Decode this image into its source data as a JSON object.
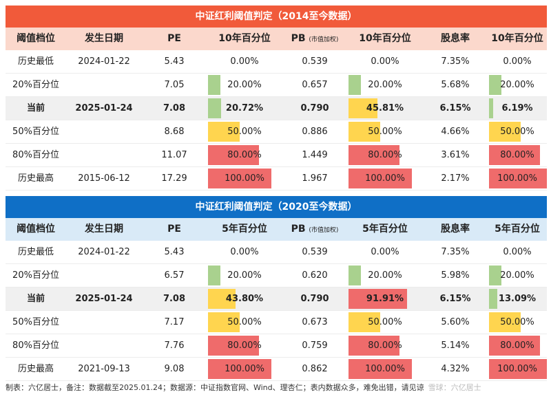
{
  "table1": {
    "title": "中证红利阈值判定（2014至今数据）",
    "headers": [
      "阈值档位",
      "发生日期",
      "PE",
      "10年百分位",
      "PB",
      "10年百分位",
      "股息率",
      "10年百分位"
    ],
    "pb_note": "(市值加权)",
    "rows": [
      {
        "level": "历史最低",
        "date": "2024-01-22",
        "pe": "5.43",
        "pe_pct": "0.00%",
        "pe_pct_val": 0.0,
        "pb": "0.539",
        "pb_pct": "0.00%",
        "pb_pct_val": 0.0,
        "yield": "7.35%",
        "yield_pct": "0.00%",
        "yield_pct_val": 0.0
      },
      {
        "level": "20%百分位",
        "date": "",
        "pe": "7.05",
        "pe_pct": "20.00%",
        "pe_pct_val": 0.2,
        "pb": "0.657",
        "pb_pct": "20.00%",
        "pb_pct_val": 0.2,
        "yield": "5.68%",
        "yield_pct": "20.00%",
        "yield_pct_val": 0.2
      },
      {
        "level": "当前",
        "date": "2025-01-24",
        "pe": "7.08",
        "pe_pct": "20.72%",
        "pe_pct_val": 0.2072,
        "pb": "0.790",
        "pb_pct": "45.81%",
        "pb_pct_val": 0.4581,
        "yield": "6.15%",
        "yield_pct": "6.19%",
        "yield_pct_val": 0.0619
      },
      {
        "level": "50%百分位",
        "date": "",
        "pe": "8.68",
        "pe_pct": "50.00%",
        "pe_pct_val": 0.5,
        "pb": "0.886",
        "pb_pct": "50.00%",
        "pb_pct_val": 0.5,
        "yield": "4.66%",
        "yield_pct": "50.00%",
        "yield_pct_val": 0.5
      },
      {
        "level": "80%百分位",
        "date": "",
        "pe": "11.07",
        "pe_pct": "80.00%",
        "pe_pct_val": 0.8,
        "pb": "1.449",
        "pb_pct": "80.00%",
        "pb_pct_val": 0.8,
        "yield": "3.61%",
        "yield_pct": "80.00%",
        "yield_pct_val": 0.8
      },
      {
        "level": "历史最高",
        "date": "2015-06-12",
        "pe": "17.29",
        "pe_pct": "100.00%",
        "pe_pct_val": 1.0,
        "pb": "1.967",
        "pb_pct": "100.00%",
        "pb_pct_val": 1.0,
        "yield": "2.17%",
        "yield_pct": "100.00%",
        "yield_pct_val": 1.0
      }
    ]
  },
  "table2": {
    "title": "中证红利阈值判定（2020至今数据）",
    "headers": [
      "阈值档位",
      "发生日期",
      "PE",
      "5年百分位",
      "PB",
      "5年百分位",
      "股息率",
      "5年百分位"
    ],
    "pb_note": "(市值加权)",
    "rows": [
      {
        "level": "历史最低",
        "date": "2024-01-22",
        "pe": "5.43",
        "pe_pct": "0.00%",
        "pe_pct_val": 0.0,
        "pb": "0.539",
        "pb_pct": "0.00%",
        "pb_pct_val": 0.0,
        "yield": "7.35%",
        "yield_pct": "0.00%",
        "yield_pct_val": 0.0
      },
      {
        "level": "20%百分位",
        "date": "",
        "pe": "6.57",
        "pe_pct": "20.00%",
        "pe_pct_val": 0.2,
        "pb": "0.620",
        "pb_pct": "20.00%",
        "pb_pct_val": 0.2,
        "yield": "5.98%",
        "yield_pct": "20.00%",
        "yield_pct_val": 0.2
      },
      {
        "level": "当前",
        "date": "2025-01-24",
        "pe": "7.08",
        "pe_pct": "43.80%",
        "pe_pct_val": 0.438,
        "pb": "0.790",
        "pb_pct": "91.91%",
        "pb_pct_val": 0.9191,
        "yield": "6.15%",
        "yield_pct": "13.09%",
        "yield_pct_val": 0.1309
      },
      {
        "level": "50%百分位",
        "date": "",
        "pe": "7.17",
        "pe_pct": "50.00%",
        "pe_pct_val": 0.5,
        "pb": "0.673",
        "pb_pct": "50.00%",
        "pb_pct_val": 0.5,
        "yield": "5.60%",
        "yield_pct": "50.00%",
        "yield_pct_val": 0.5
      },
      {
        "level": "80%百分位",
        "date": "",
        "pe": "7.76",
        "pe_pct": "80.00%",
        "pe_pct_val": 0.8,
        "pb": "0.759",
        "pb_pct": "80.00%",
        "pb_pct_val": 0.8,
        "yield": "5.14%",
        "yield_pct": "80.00%",
        "yield_pct_val": 0.8
      },
      {
        "level": "历史最高",
        "date": "2021-09-13",
        "pe": "9.08",
        "pe_pct": "100.00%",
        "pe_pct_val": 1.0,
        "pb": "0.862",
        "pb_pct": "100.00%",
        "pb_pct_val": 1.0,
        "yield": "4.32%",
        "yield_pct": "100.00%",
        "yield_pct_val": 1.0
      }
    ]
  },
  "colors": {
    "header1": "#f15a3a",
    "header2": "#0f6fc6",
    "bar_low": "#a9d18e",
    "bar_mid": "#ffd54f",
    "bar_high": "#ef6b6b"
  },
  "footer": {
    "text": "制表：六亿居士，备注：数据截至2025.01.24；数据源：中证指数官网、Wind、理杏仁；表内数据众多，难免出错，请见谅",
    "watermark": "雪球：六亿居士"
  }
}
